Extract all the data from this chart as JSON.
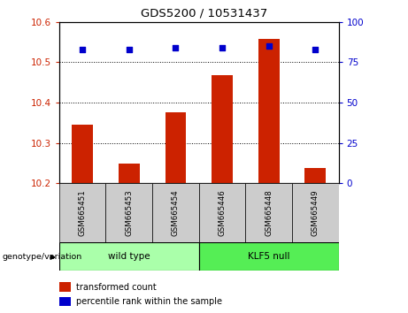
{
  "title": "GDS5200 / 10531437",
  "samples": [
    "GSM665451",
    "GSM665453",
    "GSM665454",
    "GSM665446",
    "GSM665448",
    "GSM665449"
  ],
  "bar_values": [
    10.345,
    10.248,
    10.375,
    10.468,
    10.558,
    10.237
  ],
  "percentile_values": [
    83,
    83,
    84,
    84,
    85,
    83
  ],
  "ylim_left": [
    10.2,
    10.6
  ],
  "ylim_right": [
    0,
    100
  ],
  "yticks_left": [
    10.2,
    10.3,
    10.4,
    10.5,
    10.6
  ],
  "yticks_right": [
    0,
    25,
    50,
    75,
    100
  ],
  "bar_color": "#cc2200",
  "dot_color": "#0000cc",
  "bar_bottom": 10.2,
  "groups": [
    {
      "label": "wild type",
      "color": "#aaffaa"
    },
    {
      "label": "KLF5 null",
      "color": "#55ee55"
    }
  ],
  "group_label_prefix": "genotype/variation",
  "legend_bar_label": "transformed count",
  "legend_dot_label": "percentile rank within the sample",
  "plot_bg_color": "#ffffff",
  "tick_color_left": "#cc2200",
  "tick_color_right": "#0000cc",
  "grid_color": "#000000",
  "sample_box_color": "#cccccc",
  "bar_width": 0.45
}
